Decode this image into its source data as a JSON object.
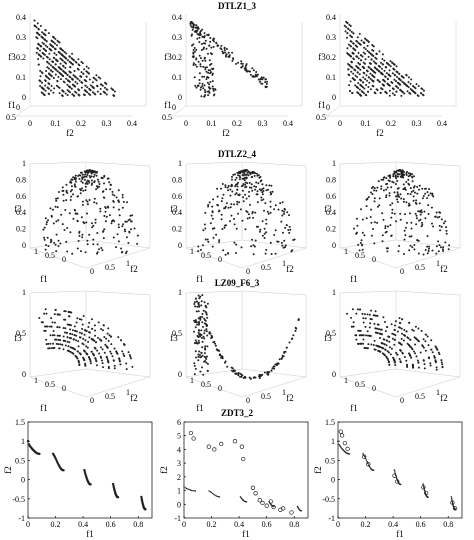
{
  "rows": [
    {
      "title": "DTLZ1_3",
      "panels": [
        {
          "tick_x": [
            "0",
            "0.1",
            "0.2",
            "0.3",
            "0.4"
          ],
          "tick_y": [
            "0",
            "0.1",
            "0.2",
            "0.3",
            "0.4"
          ],
          "tick_f1": [
            "0",
            "0.5"
          ],
          "xlabel": "f2",
          "ylabel": "f3",
          "flabel": "f1"
        },
        {
          "tick_x": [
            "0",
            "0.1",
            "0.2",
            "0.3",
            "0.4"
          ],
          "tick_y": [
            "0",
            "0.1",
            "0.2",
            "0.3",
            "0.4"
          ],
          "tick_f1": [
            "0",
            "0.5"
          ],
          "xlabel": "f2",
          "ylabel": "f3",
          "flabel": "f1"
        },
        {
          "tick_x": [
            "0",
            "0.1",
            "0.2",
            "0.3",
            "0.4"
          ],
          "tick_y": [
            "0",
            "0.1",
            "0.2",
            "0.3",
            "0.4"
          ],
          "tick_f1": [
            "0",
            "0.5"
          ],
          "xlabel": "f2",
          "ylabel": "f3",
          "flabel": "f1"
        }
      ]
    },
    {
      "title": "DTLZ2_4",
      "panels": [
        {
          "tick_y": [
            "0",
            "0.2",
            "0.4",
            "0.6",
            "0.8",
            "1"
          ],
          "tick_f1": [
            "1",
            "0.5",
            "0"
          ],
          "tick_f2": [
            "0",
            "0.5",
            "1"
          ],
          "ylabel": "f3",
          "flabel": "f1",
          "f2label": "f2"
        },
        {
          "tick_y": [
            "0",
            "0.2",
            "0.4",
            "0.6",
            "0.8",
            "1"
          ],
          "tick_f1": [
            "1",
            "0.5",
            "0"
          ],
          "tick_f2": [
            "0",
            "0.5",
            "1"
          ],
          "ylabel": "f3",
          "flabel": "f1",
          "f2label": "f2"
        },
        {
          "tick_y": [
            "0",
            "0.2",
            "0.4",
            "0.6",
            "0.8",
            "1"
          ],
          "tick_f1": [
            "1",
            "0.5",
            "0"
          ],
          "tick_f2": [
            "0",
            "0.5",
            "1"
          ],
          "ylabel": "f3",
          "flabel": "f1",
          "f2label": "f2"
        }
      ]
    },
    {
      "title": "LZ09_F6_3",
      "panels": [
        {
          "tick_y": [
            "0",
            "0.5",
            "1"
          ],
          "tick_f1": [
            "1",
            "0.5",
            "0"
          ],
          "tick_f2": [
            "0",
            "0.5",
            "1"
          ],
          "ylabel": "f3",
          "flabel": "f1",
          "f2label": "f2"
        },
        {
          "tick_y": [
            "0",
            "0.5",
            "1"
          ],
          "tick_f1": [
            "1",
            "0.5",
            "0"
          ],
          "tick_f2": [
            "0",
            "0.5",
            "1"
          ],
          "ylabel": "f3",
          "flabel": "f1",
          "f2label": "f2"
        },
        {
          "tick_y": [
            "0",
            "0.5",
            "1"
          ],
          "tick_f1": [
            "1",
            "0.5",
            "0"
          ],
          "tick_f2": [
            "0",
            "0.5",
            "1"
          ],
          "ylabel": "f3",
          "flabel": "f1",
          "f2label": "f2"
        }
      ]
    },
    {
      "title": "ZDT3_2",
      "panels": [
        {
          "tick_x": [
            "0",
            "0.2",
            "0.4",
            "0.6",
            "0.8"
          ],
          "tick_y": [
            "-1",
            "-0.5",
            "0",
            "0.5",
            "1",
            "1.5"
          ],
          "xlabel": "f1",
          "ylabel": "f2"
        },
        {
          "tick_x": [
            "0",
            "0.2",
            "0.4",
            "0.6",
            "0.8"
          ],
          "tick_y": [
            "-1",
            "0",
            "1",
            "2",
            "3",
            "4",
            "5",
            "6"
          ],
          "xlabel": "f1",
          "ylabel": "f2"
        },
        {
          "tick_x": [
            "0",
            "0.2",
            "0.4",
            "0.6",
            "0.8"
          ],
          "tick_y": [
            "-1",
            "-0.5",
            "0",
            "0.5",
            "1",
            "1.5"
          ],
          "xlabel": "f1",
          "ylabel": "f2"
        }
      ]
    }
  ],
  "chart_data": [
    {
      "type": "scatter",
      "title": "DTLZ1_3",
      "series_count": 3,
      "axis_labels": [
        "f1",
        "f2",
        "f3"
      ],
      "xlim": [
        0,
        0.5
      ],
      "ylim": [
        0,
        0.5
      ],
      "zlim": [
        0,
        0.5
      ]
    },
    {
      "type": "scatter",
      "title": "DTLZ2_4",
      "series_count": 3,
      "axis_labels": [
        "f1",
        "f2",
        "f3"
      ],
      "xlim": [
        0,
        1
      ],
      "ylim": [
        0,
        1
      ],
      "zlim": [
        0,
        1
      ]
    },
    {
      "type": "scatter",
      "title": "LZ09_F6_3",
      "series_count": 3,
      "axis_labels": [
        "f1",
        "f2",
        "f3"
      ],
      "xlim": [
        0,
        1
      ],
      "ylim": [
        0,
        1
      ],
      "zlim": [
        0,
        1
      ]
    },
    {
      "type": "scatter",
      "title": "ZDT3_2",
      "series_count": 3,
      "axis_labels": [
        "f1",
        "f2"
      ],
      "xlim": [
        0,
        0.85
      ],
      "ylim": [
        -1,
        1.5
      ]
    }
  ]
}
